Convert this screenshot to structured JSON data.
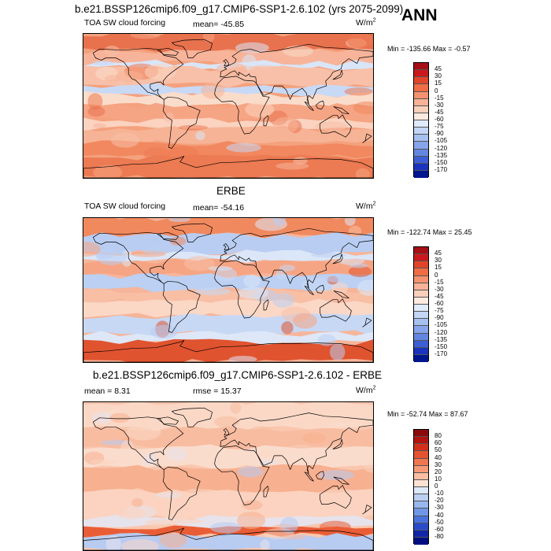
{
  "main_title": "b.e21.BSSP126cmip6.f09_g17.CMIP6-SSP1-2.6.102 (yrs 2075-2099)",
  "season": "ANN",
  "panels": [
    {
      "id": "model",
      "title": "",
      "left_label": "TOA SW cloud forcing",
      "stat_label": "mean= -45.85",
      "units": "W/m",
      "units_exp": "2",
      "minmax": "Min = -135.66 Max =  -0.57",
      "levels": [
        "45",
        "30",
        "15",
        "0",
        "-15",
        "-30",
        "-45",
        "-60",
        "-75",
        "-90",
        "-105",
        "-120",
        "-135",
        "-150",
        "-170"
      ],
      "colors": [
        "#a50f15",
        "#cb181d",
        "#e0452a",
        "#ef6c45",
        "#f59270",
        "#f9b297",
        "#fbd0bb",
        "#fdeae0",
        "#dfeafa",
        "#c3d6f5",
        "#a6c0f0",
        "#86a5ea",
        "#6386e1",
        "#3d5fd6",
        "#1a34bd",
        "#00168f"
      ],
      "map": {
        "ocean_base": "#f4a17e",
        "bands": [
          {
            "c": "#e8714e",
            "y0": 0.0,
            "y1": 0.12
          },
          {
            "c": "#f7b49a",
            "y0": 0.12,
            "y1": 0.2
          },
          {
            "c": "#d9e5f8",
            "y0": 0.2,
            "y1": 0.24
          },
          {
            "c": "#f8c0a8",
            "y0": 0.24,
            "y1": 0.36
          },
          {
            "c": "#c8d9f5",
            "y0": 0.36,
            "y1": 0.42
          },
          {
            "c": "#fadccb",
            "y0": 0.42,
            "y1": 0.5
          },
          {
            "c": "#f6a584",
            "y0": 0.5,
            "y1": 0.6
          },
          {
            "c": "#fbd3c0",
            "y0": 0.6,
            "y1": 0.66
          },
          {
            "c": "#f7b395",
            "y0": 0.66,
            "y1": 0.76
          },
          {
            "c": "#f1885f",
            "y0": 0.76,
            "y1": 0.86
          },
          {
            "c": "#ec7a52",
            "y0": 0.86,
            "y1": 1.0
          }
        ]
      }
    },
    {
      "id": "obs",
      "title": "ERBE",
      "left_label": "TOA SW cloud forcing",
      "stat_label": "mean= -54.16",
      "units": "W/m",
      "units_exp": "2",
      "minmax": "Min = -122.74 Max =  25.45",
      "levels": [
        "45",
        "30",
        "15",
        "0",
        "-15",
        "-30",
        "-45",
        "-60",
        "-75",
        "-90",
        "-105",
        "-120",
        "-135",
        "-150",
        "-170"
      ],
      "colors": [
        "#a50f15",
        "#cb181d",
        "#e0452a",
        "#ef6c45",
        "#f59270",
        "#f9b297",
        "#fbd0bb",
        "#fdeae0",
        "#dfeafa",
        "#c3d6f5",
        "#a6c0f0",
        "#86a5ea",
        "#6386e1",
        "#3d5fd6",
        "#1a34bd",
        "#00168f"
      ],
      "map": {
        "ocean_base": "#f6b59a",
        "bands": [
          {
            "c": "#f1895f",
            "y0": 0.0,
            "y1": 0.12
          },
          {
            "c": "#b9cdf2",
            "y0": 0.12,
            "y1": 0.24
          },
          {
            "c": "#dbe6f8",
            "y0": 0.24,
            "y1": 0.3
          },
          {
            "c": "#f6a584",
            "y0": 0.3,
            "y1": 0.4
          },
          {
            "c": "#bcd0f3",
            "y0": 0.4,
            "y1": 0.5
          },
          {
            "c": "#f8bfa5",
            "y0": 0.5,
            "y1": 0.58
          },
          {
            "c": "#fbd7c5",
            "y0": 0.58,
            "y1": 0.68
          },
          {
            "c": "#c7d8f5",
            "y0": 0.68,
            "y1": 0.8
          },
          {
            "c": "#dde7f8",
            "y0": 0.8,
            "y1": 0.86
          },
          {
            "c": "#e0532f",
            "y0": 0.86,
            "y1": 1.0
          }
        ]
      }
    },
    {
      "id": "diff",
      "title": "b.e21.BSSP126cmip6.f09_g17.CMIP6-SSP1-2.6.102 - ERBE",
      "left_label": "mean =  8.31",
      "stat_label": "rmse =  15.37",
      "units": "W/m",
      "units_exp": "2",
      "minmax": "Min = -52.74 Max =  87.67",
      "levels": [
        "80",
        "60",
        "50",
        "40",
        "30",
        "20",
        "10",
        "0",
        "-10",
        "-20",
        "-30",
        "-40",
        "-50",
        "-60",
        "-80"
      ],
      "colors": [
        "#8b0a0a",
        "#b3130f",
        "#d2301c",
        "#e4532f",
        "#f07650",
        "#f69a76",
        "#f9bda2",
        "#fde2d3",
        "#dde8f9",
        "#bcd0f3",
        "#98b7ee",
        "#7096e6",
        "#4b72dc",
        "#2a4cca",
        "#1026a8",
        "#000f80"
      ],
      "map": {
        "ocean_base": "#f9c6ae",
        "bands": [
          {
            "c": "#fbd8c6",
            "y0": 0.0,
            "y1": 0.18
          },
          {
            "c": "#f8bca1",
            "y0": 0.18,
            "y1": 0.3
          },
          {
            "c": "#fadccc",
            "y0": 0.3,
            "y1": 0.44
          },
          {
            "c": "#f7b090",
            "y0": 0.44,
            "y1": 0.6
          },
          {
            "c": "#fbd3c0",
            "y0": 0.6,
            "y1": 0.78
          },
          {
            "c": "#e6e3ec",
            "y0": 0.78,
            "y1": 0.84
          },
          {
            "c": "#e95d36",
            "y0": 0.84,
            "y1": 0.9
          },
          {
            "c": "#b8cbf1",
            "y0": 0.9,
            "y1": 1.0
          }
        ]
      }
    }
  ]
}
